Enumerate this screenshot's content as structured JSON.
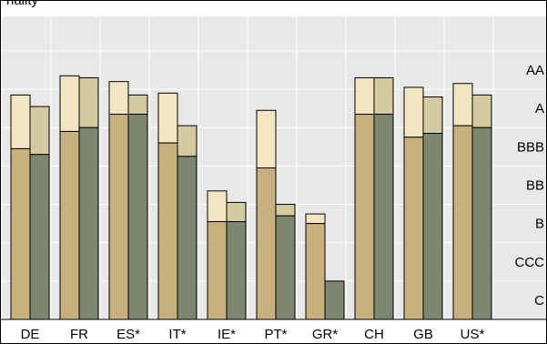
{
  "chart_data": {
    "type": "bar",
    "title": "nality",
    "categories": [
      "DE",
      "FR",
      "ES*",
      "IT*",
      "IE*",
      "PT*",
      "GR*",
      "CH",
      "GB",
      "US*"
    ],
    "y_ticks": [
      "C",
      "CCC",
      "B",
      "BB",
      "BBB",
      "A",
      "AA"
    ],
    "y_tick_values": [
      0.5,
      1.5,
      2.5,
      3.5,
      4.5,
      5.5,
      6.5
    ],
    "ylim": [
      0,
      7.9
    ],
    "grid": true,
    "series": [
      {
        "bar_low": [
          4.45,
          4.9,
          5.35,
          4.6,
          2.55,
          3.95,
          2.5,
          5.35,
          4.75,
          5.05
        ],
        "bar_high": [
          5.85,
          6.35,
          6.2,
          5.9,
          3.35,
          5.45,
          2.75,
          6.3,
          6.05,
          6.15
        ]
      },
      {
        "bar_low": [
          4.3,
          5.0,
          5.35,
          4.25,
          2.55,
          2.7,
          1.0,
          5.35,
          4.85,
          5.0
        ],
        "bar_high": [
          5.55,
          6.3,
          5.85,
          5.05,
          3.05,
          3.0,
          1.0,
          6.3,
          5.8,
          5.85
        ]
      }
    ],
    "colors": {
      "series1_low": "#c8b07e",
      "series1_high": "#f2e6c2",
      "series2_low": "#7c8670",
      "series2_high": "#d3ca9f",
      "plot_background": "#e8e8e8",
      "gridline": "#ffffff"
    }
  }
}
